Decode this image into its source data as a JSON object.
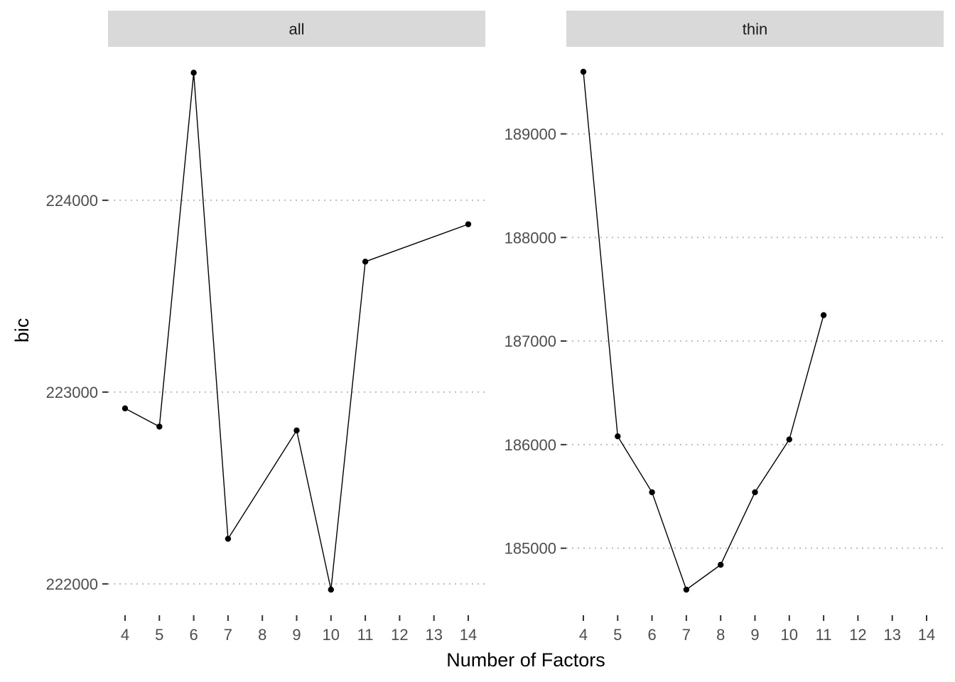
{
  "chart_data": {
    "type": "line",
    "xlabel": "Number of Factors",
    "ylabel": "bic",
    "grid": "major-y-dotted",
    "x_ticks": [
      "4",
      "5",
      "6",
      "7",
      "8",
      "9",
      "10",
      "11",
      "12",
      "13",
      "14"
    ],
    "panels": [
      {
        "label": "all",
        "ylim": [
          221970,
          224670
        ],
        "y_ticks": [
          222000,
          223000,
          224000
        ],
        "y_tick_labels": [
          "222000",
          "223000",
          "224000"
        ],
        "points": [
          {
            "x": 4,
            "y": 222915
          },
          {
            "x": 5,
            "y": 222820
          },
          {
            "x": 6,
            "y": 224665
          },
          {
            "x": 7,
            "y": 222235
          },
          {
            "x": 9,
            "y": 222800
          },
          {
            "x": 10,
            "y": 221970
          },
          {
            "x": 11,
            "y": 223680
          },
          {
            "x": 14,
            "y": 223875
          }
        ]
      },
      {
        "label": "thin",
        "ylim": [
          184600,
          189600
        ],
        "y_ticks": [
          185000,
          186000,
          187000,
          188000,
          189000
        ],
        "y_tick_labels": [
          "185000",
          "186000",
          "187000",
          "188000",
          "189000"
        ],
        "points": [
          {
            "x": 4,
            "y": 189600
          },
          {
            "x": 5,
            "y": 186080
          },
          {
            "x": 6,
            "y": 185540
          },
          {
            "x": 7,
            "y": 184600
          },
          {
            "x": 8,
            "y": 184840
          },
          {
            "x": 9,
            "y": 185540
          },
          {
            "x": 10,
            "y": 186050
          },
          {
            "x": 11,
            "y": 187250
          }
        ]
      }
    ]
  }
}
